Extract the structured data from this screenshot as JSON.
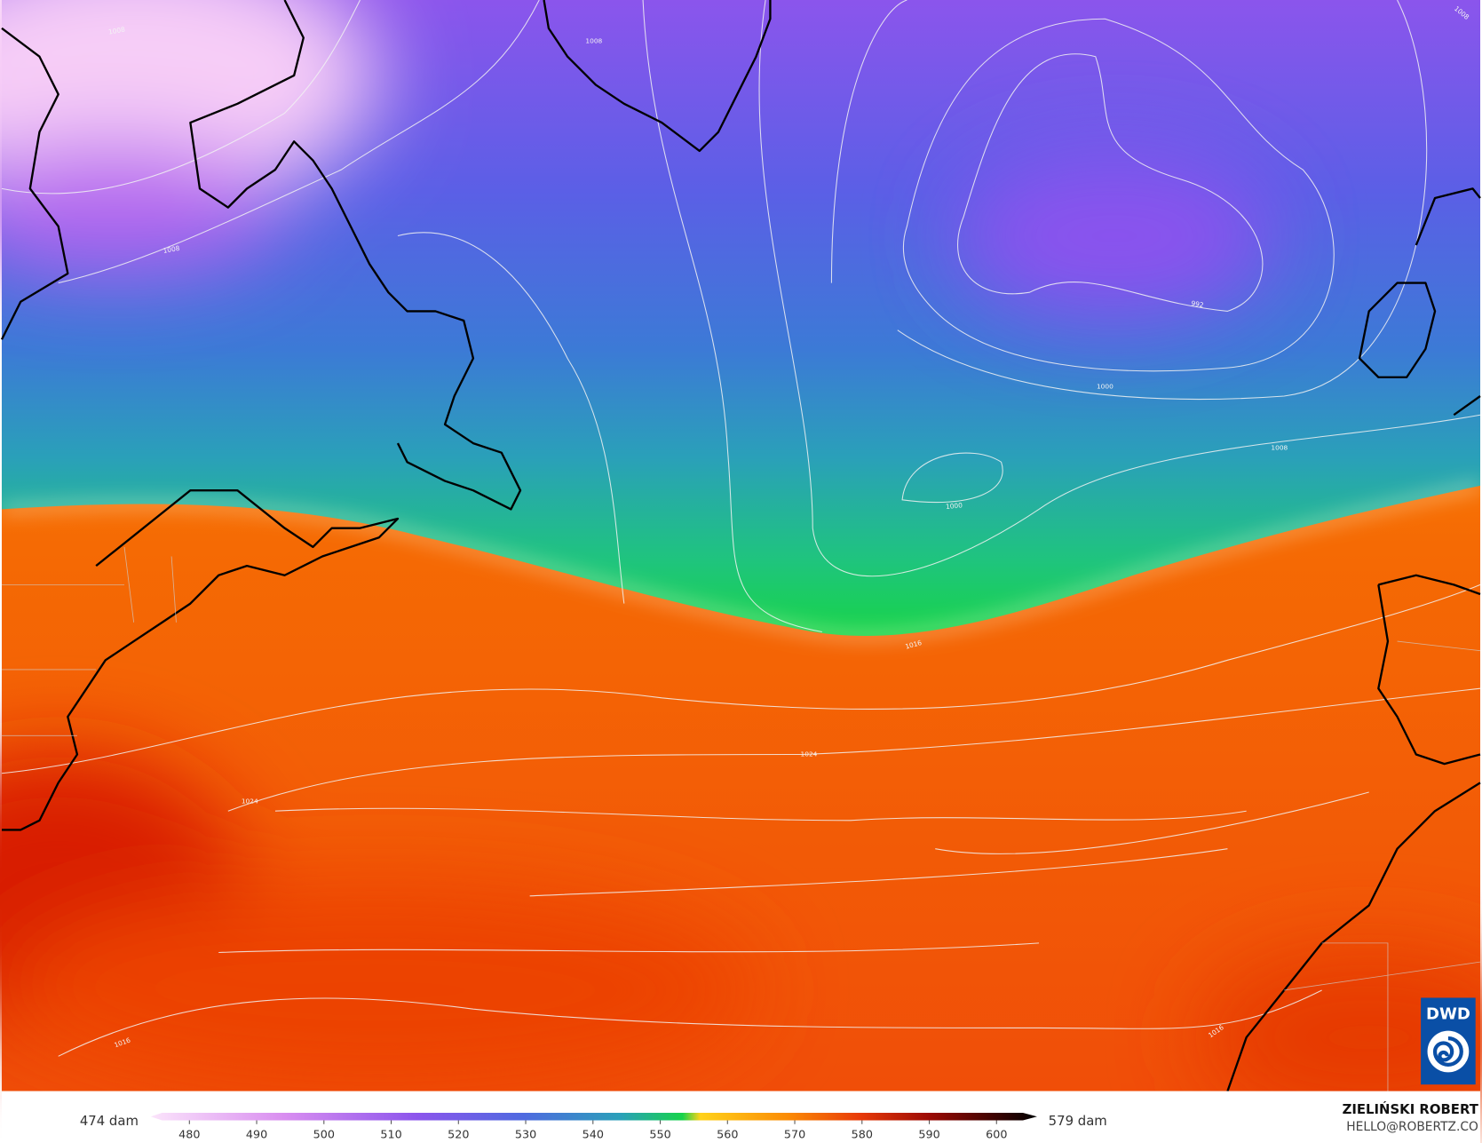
{
  "map": {
    "contour_labels": [
      "1008",
      "1008",
      "1008",
      "1008",
      "992",
      "1000",
      "1000",
      "1008",
      "1016",
      "1024",
      "1024",
      "1016",
      "1016"
    ]
  },
  "colorbar": {
    "min_label": "474 dam",
    "max_label": "579 dam",
    "ticks": [
      480,
      490,
      500,
      510,
      520,
      530,
      540,
      550,
      560,
      570,
      580,
      590,
      600
    ]
  },
  "credit": {
    "author": "ZIELIŃSKI ROBERT",
    "contact": "HELLO@ROBERTZ.CO"
  },
  "logo": "DWD"
}
